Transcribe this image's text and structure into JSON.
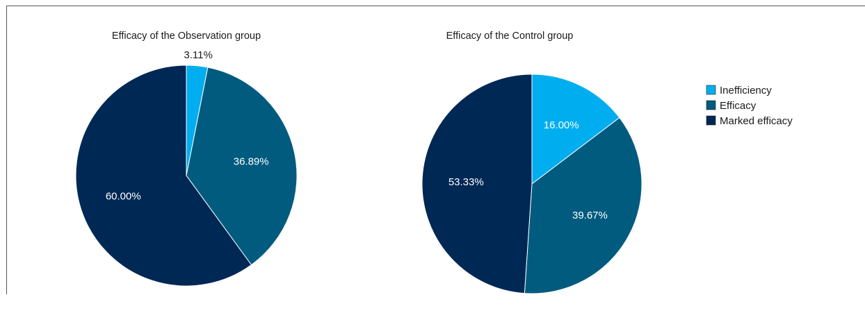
{
  "chart_data": [
    {
      "type": "pie",
      "title": "Efficacy of the Observation group",
      "slices": [
        {
          "category": "Inefficiency",
          "value": 3.11,
          "label": "3.11%"
        },
        {
          "category": "Efficacy",
          "value": 36.89,
          "label": "36.89%"
        },
        {
          "category": "Marked efficacy",
          "value": 60.0,
          "label": "60.00%"
        }
      ]
    },
    {
      "type": "pie",
      "title": "Efficacy of the Control group",
      "slices": [
        {
          "category": "Inefficiency",
          "value": 16.0,
          "label": "16.00%"
        },
        {
          "category": "Efficacy",
          "value": 39.67,
          "label": "39.67%"
        },
        {
          "category": "Marked efficacy",
          "value": 53.33,
          "label": "53.33%"
        }
      ]
    }
  ],
  "legend": {
    "placement": "right",
    "items": [
      {
        "label": "Inefficiency",
        "color": "#00aeef"
      },
      {
        "label": "Efficacy",
        "color": "#005b7f"
      },
      {
        "label": "Marked efficacy",
        "color": "#002855"
      }
    ]
  },
  "colors": {
    "Inefficiency": "#00aeef",
    "Efficacy": "#005b7f",
    "Marked efficacy": "#002855",
    "slice_border": "#ffffff",
    "inside_label": "#ffffff",
    "outside_label": "#1a1a1a"
  }
}
